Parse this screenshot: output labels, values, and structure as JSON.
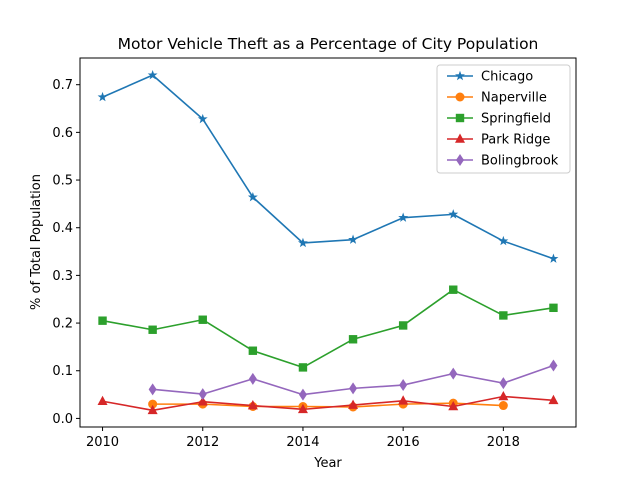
{
  "chart_data": {
    "type": "line",
    "title": "Motor Vehicle Theft as a Percentage of City Population",
    "xlabel": "Year",
    "ylabel": "% of Total Population",
    "xlim": [
      2009.55,
      2019.45
    ],
    "ylim": [
      -0.018,
      0.756
    ],
    "x_ticks": [
      2010,
      2012,
      2014,
      2016,
      2018
    ],
    "y_ticks": [
      0.0,
      0.1,
      0.2,
      0.3,
      0.4,
      0.5,
      0.6,
      0.7
    ],
    "y_tick_labels": [
      "0.0",
      "0.1",
      "0.2",
      "0.3",
      "0.4",
      "0.5",
      "0.6",
      "0.7"
    ],
    "grid": false,
    "legend_position": "top-right",
    "series": [
      {
        "name": "Chicago",
        "color": "#1f77b4",
        "marker": "star",
        "x": [
          2010,
          2011,
          2012,
          2013,
          2014,
          2015,
          2016,
          2017,
          2018,
          2019
        ],
        "y": [
          0.674,
          0.72,
          0.628,
          0.464,
          0.368,
          0.375,
          0.421,
          0.428,
          0.372,
          0.335
        ]
      },
      {
        "name": "Naperville",
        "color": "#ff7f0e",
        "marker": "circle",
        "x": [
          2011,
          2012,
          2013,
          2014,
          2015,
          2016,
          2017,
          2018
        ],
        "y": [
          0.03,
          0.03,
          0.025,
          0.025,
          0.024,
          0.03,
          0.032,
          0.027
        ]
      },
      {
        "name": "Springfield",
        "color": "#2ca02c",
        "marker": "square",
        "x": [
          2010,
          2011,
          2012,
          2013,
          2014,
          2015,
          2016,
          2017,
          2018,
          2019
        ],
        "y": [
          0.205,
          0.186,
          0.207,
          0.142,
          0.107,
          0.166,
          0.195,
          0.27,
          0.216,
          0.232
        ]
      },
      {
        "name": "Park Ridge",
        "color": "#d62728",
        "marker": "triangle",
        "x": [
          2010,
          2011,
          2012,
          2013,
          2014,
          2015,
          2016,
          2017,
          2018,
          2019
        ],
        "y": [
          0.036,
          0.017,
          0.035,
          0.027,
          0.019,
          0.028,
          0.037,
          0.025,
          0.046,
          0.038
        ]
      },
      {
        "name": "Bolingbrook",
        "color": "#9467bd",
        "marker": "diamond",
        "x": [
          2011,
          2012,
          2013,
          2014,
          2015,
          2016,
          2017,
          2018,
          2019
        ],
        "y": [
          0.061,
          0.051,
          0.083,
          0.05,
          0.063,
          0.07,
          0.094,
          0.074,
          0.111
        ]
      }
    ]
  }
}
